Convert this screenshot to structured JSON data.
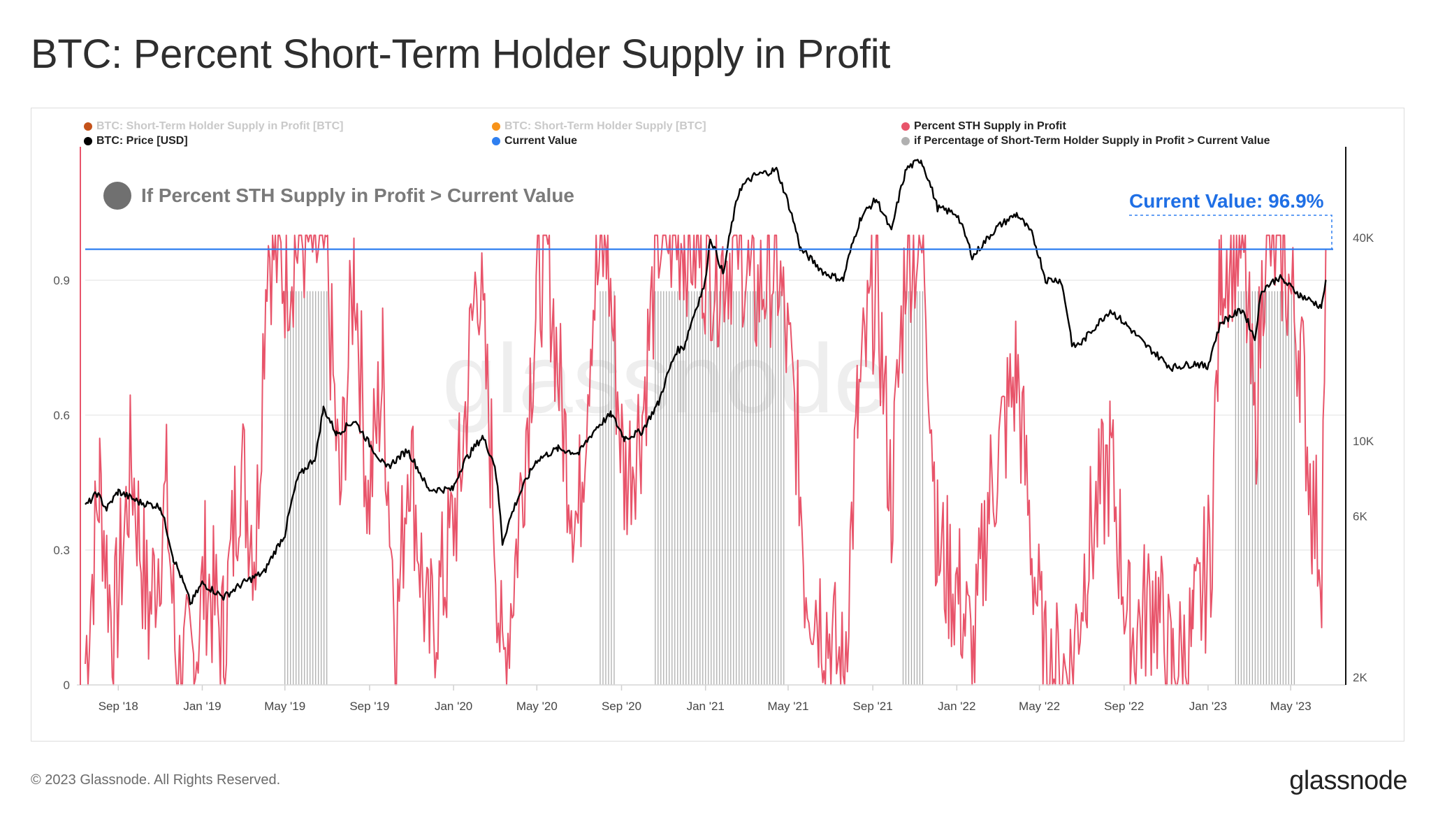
{
  "title": "BTC: Percent Short-Term Holder Supply in Profit",
  "legend": {
    "item1": "BTC: Short-Term Holder Supply in Profit [BTC]",
    "item1_color": "#c4521a",
    "item2": "BTC: Short-Term Holder Supply [BTC]",
    "item2_color": "#f7931a",
    "item3": "Percent STH Supply in Profit",
    "item3_color": "#e8546a",
    "item4": "BTC: Price [USD]",
    "item4_color": "#000000",
    "item5": "Current Value",
    "item5_color": "#2f7ff0",
    "item6": "if Percentage of Short-Term Holder Supply in Profit > Current Value",
    "item6_color": "#b0b0b0"
  },
  "annotation": "If Percent STH Supply in Profit > Current Value",
  "current_value_label": "Current Value: 96.9%",
  "footer": "© 2023 Glassnode. All Rights Reserved.",
  "brand": "glassnode",
  "watermark": "glassnode",
  "chart_data": {
    "type": "line",
    "x_tick_labels": [
      "Sep '18",
      "Jan '19",
      "May '19",
      "Sep '19",
      "Jan '20",
      "May '20",
      "Sep '20",
      "Jan '21",
      "May '21",
      "Sep '21",
      "Jan '22",
      "May '22",
      "Sep '22",
      "Jan '23",
      "May '23"
    ],
    "y_left_ticks": [
      "0",
      "0.3",
      "0.6",
      "0.9"
    ],
    "y_left_range": [
      0,
      1.2
    ],
    "y_right_ticks": [
      "2K",
      "6K",
      "10K",
      "40K"
    ],
    "y_right_scale": "log",
    "y_right_range": [
      1900,
      75000
    ],
    "current_value": 0.969,
    "grid": true,
    "x_range": [
      "2018-07-15",
      "2023-07-20"
    ],
    "series": [
      {
        "name": "BTC: Price [USD]",
        "color": "#000000",
        "axis": "right",
        "points": [
          [
            "2018-07-15",
            6400
          ],
          [
            "2018-08-01",
            7000
          ],
          [
            "2018-08-15",
            6300
          ],
          [
            "2018-09-01",
            7100
          ],
          [
            "2018-10-01",
            6600
          ],
          [
            "2018-11-01",
            6400
          ],
          [
            "2018-11-20",
            4500
          ],
          [
            "2018-12-15",
            3300
          ],
          [
            "2019-01-01",
            3800
          ],
          [
            "2019-02-01",
            3450
          ],
          [
            "2019-03-01",
            3800
          ],
          [
            "2019-04-01",
            4100
          ],
          [
            "2019-05-01",
            5300
          ],
          [
            "2019-05-20",
            7800
          ],
          [
            "2019-06-15",
            9000
          ],
          [
            "2019-06-26",
            12500
          ],
          [
            "2019-07-15",
            10500
          ],
          [
            "2019-08-10",
            11500
          ],
          [
            "2019-09-01",
            9800
          ],
          [
            "2019-09-25",
            8300
          ],
          [
            "2019-10-26",
            9400
          ],
          [
            "2019-11-25",
            7200
          ],
          [
            "2019-12-31",
            7200
          ],
          [
            "2020-01-15",
            8600
          ],
          [
            "2020-02-12",
            10300
          ],
          [
            "2020-03-01",
            8500
          ],
          [
            "2020-03-12",
            5000
          ],
          [
            "2020-04-01",
            6600
          ],
          [
            "2020-05-01",
            8800
          ],
          [
            "2020-06-01",
            9500
          ],
          [
            "2020-07-01",
            9200
          ],
          [
            "2020-07-27",
            11000
          ],
          [
            "2020-08-17",
            12000
          ],
          [
            "2020-09-05",
            10200
          ],
          [
            "2020-10-01",
            10700
          ],
          [
            "2020-10-25",
            13000
          ],
          [
            "2020-11-20",
            18500
          ],
          [
            "2020-12-01",
            19000
          ],
          [
            "2020-12-31",
            29000
          ],
          [
            "2021-01-08",
            40000
          ],
          [
            "2021-01-27",
            31000
          ],
          [
            "2021-02-20",
            56000
          ],
          [
            "2021-03-13",
            61000
          ],
          [
            "2021-04-14",
            63500
          ],
          [
            "2021-05-19",
            37000
          ],
          [
            "2021-06-22",
            31500
          ],
          [
            "2021-07-20",
            30000
          ],
          [
            "2021-08-15",
            46000
          ],
          [
            "2021-09-06",
            52000
          ],
          [
            "2021-09-28",
            41500
          ],
          [
            "2021-10-20",
            64000
          ],
          [
            "2021-11-10",
            68000
          ],
          [
            "2021-12-04",
            49000
          ],
          [
            "2022-01-01",
            47000
          ],
          [
            "2022-01-24",
            35000
          ],
          [
            "2022-03-01",
            43000
          ],
          [
            "2022-03-29",
            47000
          ],
          [
            "2022-04-20",
            41000
          ],
          [
            "2022-05-10",
            30000
          ],
          [
            "2022-06-01",
            30000
          ],
          [
            "2022-06-18",
            19000
          ],
          [
            "2022-07-01",
            19500
          ],
          [
            "2022-08-12",
            24400
          ],
          [
            "2022-09-10",
            21500
          ],
          [
            "2022-10-01",
            19300
          ],
          [
            "2022-11-08",
            16500
          ],
          [
            "2022-12-15",
            17000
          ],
          [
            "2022-12-31",
            16500
          ],
          [
            "2023-01-20",
            22500
          ],
          [
            "2023-02-20",
            24500
          ],
          [
            "2023-03-10",
            20000
          ],
          [
            "2023-03-20",
            28000
          ],
          [
            "2023-04-14",
            30500
          ],
          [
            "2023-05-15",
            27000
          ],
          [
            "2023-06-15",
            25000
          ],
          [
            "2023-06-21",
            30000
          ]
        ]
      },
      {
        "name": "Percent STH Supply in Profit",
        "color": "#e8546a",
        "axis": "left",
        "points": [
          [
            "2018-07-15",
            0.05
          ],
          [
            "2018-08-05",
            0.45
          ],
          [
            "2018-08-25",
            0.1
          ],
          [
            "2018-09-20",
            0.5
          ],
          [
            "2018-10-15",
            0.15
          ],
          [
            "2018-11-10",
            0.42
          ],
          [
            "2018-11-25",
            0.02
          ],
          [
            "2018-12-20",
            0.05
          ],
          [
            "2019-01-05",
            0.25
          ],
          [
            "2019-02-01",
            0.1
          ],
          [
            "2019-02-25",
            0.5
          ],
          [
            "2019-03-20",
            0.3
          ],
          [
            "2019-04-05",
            0.99
          ],
          [
            "2019-05-01",
            0.92
          ],
          [
            "2019-05-25",
            1.0
          ],
          [
            "2019-06-30",
            0.95
          ],
          [
            "2019-07-20",
            0.4
          ],
          [
            "2019-08-10",
            0.95
          ],
          [
            "2019-08-30",
            0.4
          ],
          [
            "2019-09-20",
            0.7
          ],
          [
            "2019-10-10",
            0.1
          ],
          [
            "2019-10-28",
            0.55
          ],
          [
            "2019-11-25",
            0.1
          ],
          [
            "2019-12-20",
            0.25
          ],
          [
            "2020-01-10",
            0.45
          ],
          [
            "2020-02-05",
            0.95
          ],
          [
            "2020-02-25",
            0.5
          ],
          [
            "2020-03-12",
            0.01
          ],
          [
            "2020-04-01",
            0.3
          ],
          [
            "2020-04-30",
            0.85
          ],
          [
            "2020-05-15",
            0.99
          ],
          [
            "2020-06-10",
            0.55
          ],
          [
            "2020-06-30",
            0.35
          ],
          [
            "2020-07-20",
            0.85
          ],
          [
            "2020-08-10",
            0.99
          ],
          [
            "2020-09-05",
            0.45
          ],
          [
            "2020-10-01",
            0.6
          ],
          [
            "2020-10-25",
            1.0
          ],
          [
            "2020-12-01",
            1.0
          ],
          [
            "2021-01-20",
            0.92
          ],
          [
            "2021-02-20",
            1.0
          ],
          [
            "2021-03-10",
            0.85
          ],
          [
            "2021-04-14",
            0.95
          ],
          [
            "2021-05-15",
            0.55
          ],
          [
            "2021-05-25",
            0.25
          ],
          [
            "2021-06-22",
            0.15
          ],
          [
            "2021-07-20",
            0.01
          ],
          [
            "2021-08-10",
            0.6
          ],
          [
            "2021-09-06",
            0.92
          ],
          [
            "2021-09-28",
            0.4
          ],
          [
            "2021-10-20",
            0.99
          ],
          [
            "2021-11-15",
            0.95
          ],
          [
            "2021-12-04",
            0.3
          ],
          [
            "2022-01-05",
            0.2
          ],
          [
            "2022-01-25",
            0.05
          ],
          [
            "2022-02-15",
            0.4
          ],
          [
            "2022-03-29",
            0.7
          ],
          [
            "2022-04-20",
            0.3
          ],
          [
            "2022-05-10",
            0.02
          ],
          [
            "2022-06-15",
            0.03
          ],
          [
            "2022-07-10",
            0.3
          ],
          [
            "2022-08-12",
            0.5
          ],
          [
            "2022-09-10",
            0.1
          ],
          [
            "2022-10-15",
            0.2
          ],
          [
            "2022-11-09",
            0.02
          ],
          [
            "2022-12-10",
            0.1
          ],
          [
            "2023-01-05",
            0.3
          ],
          [
            "2023-01-20",
            0.95
          ],
          [
            "2023-02-20",
            1.0
          ],
          [
            "2023-03-10",
            0.55
          ],
          [
            "2023-03-25",
            1.0
          ],
          [
            "2023-04-20",
            0.95
          ],
          [
            "2023-05-15",
            0.75
          ],
          [
            "2023-06-01",
            0.4
          ],
          [
            "2023-06-15",
            0.3
          ],
          [
            "2023-06-21",
            0.969
          ]
        ]
      }
    ],
    "shaded_bands": [
      [
        "2019-05-01",
        "2019-07-01"
      ],
      [
        "2020-08-01",
        "2020-08-25"
      ],
      [
        "2020-10-20",
        "2021-04-28"
      ],
      [
        "2021-10-15",
        "2021-11-15"
      ],
      [
        "2023-02-10",
        "2023-05-10"
      ]
    ]
  }
}
